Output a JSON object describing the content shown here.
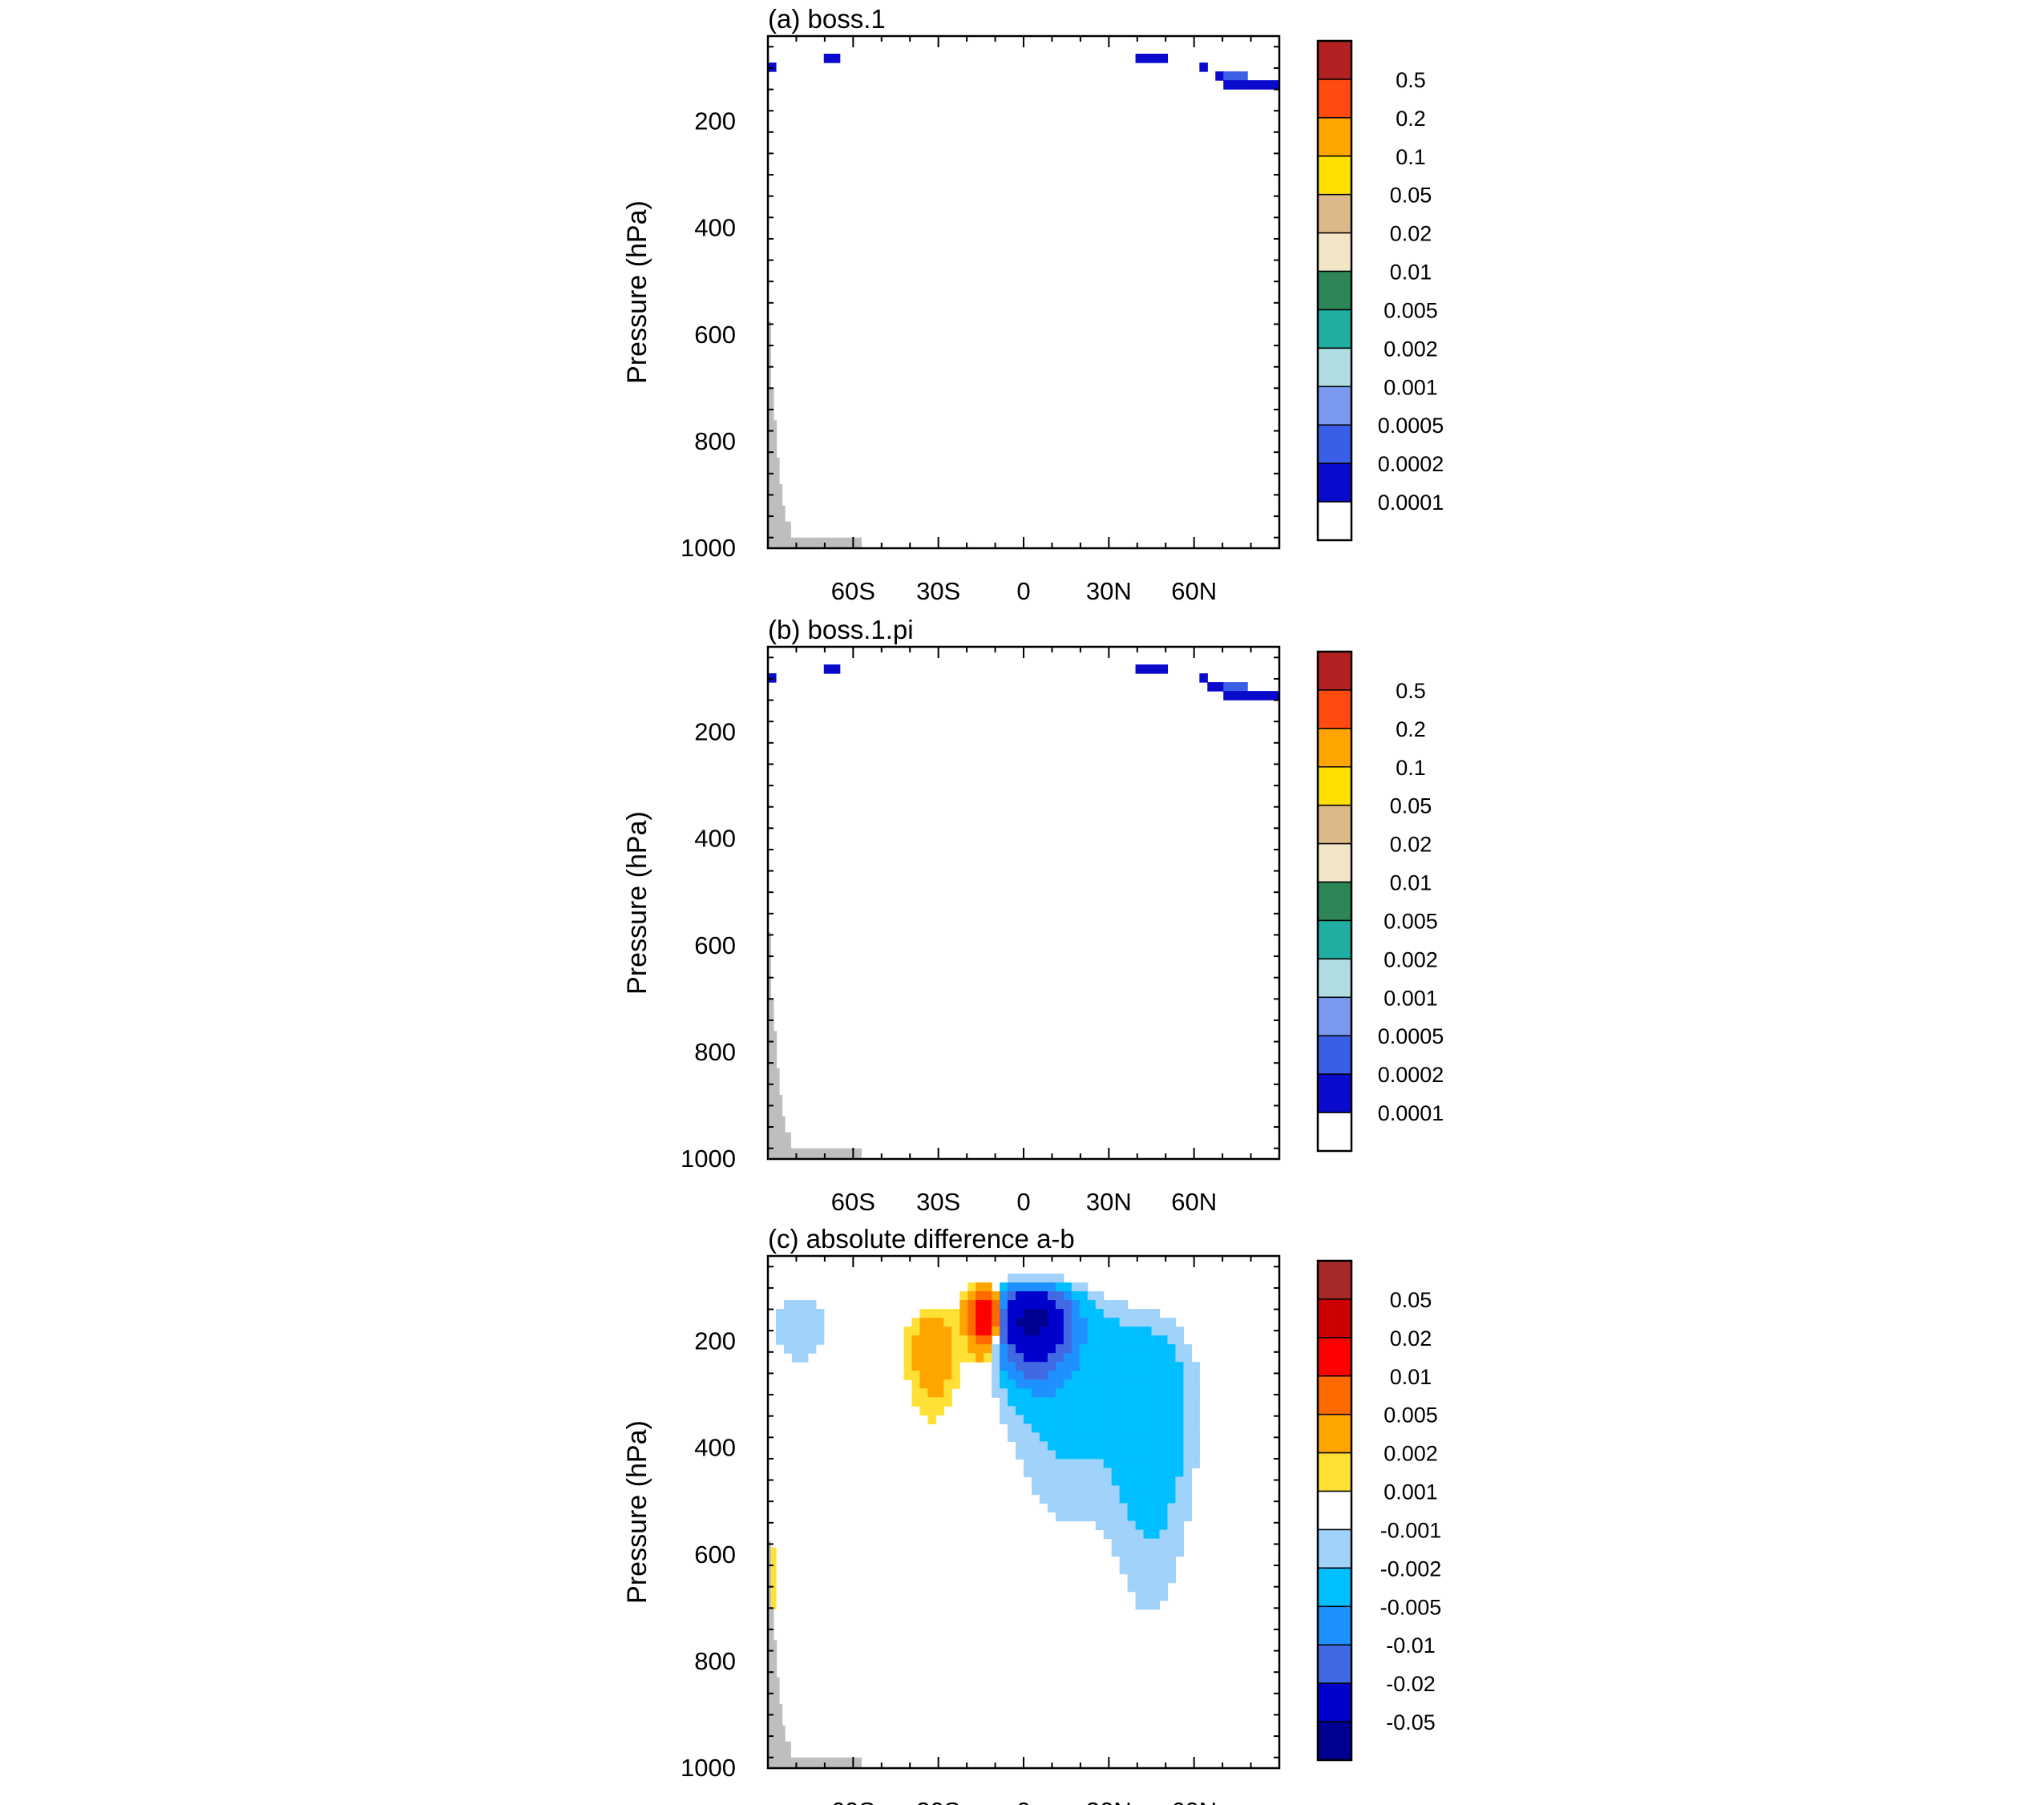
{
  "figure": {
    "axis_common": {
      "ylabel": "Pressure (hPa)",
      "y_ticks": [
        200,
        400,
        600,
        800,
        1000
      ],
      "y_tick_labels": [
        "200",
        "400",
        "600",
        "800",
        "1000"
      ],
      "x_ticks": [
        -60,
        -30,
        0,
        30,
        60
      ],
      "x_tick_labels": [
        "60S",
        "30S",
        "0",
        "30N",
        "60N"
      ]
    },
    "colors": {
      "panel_ab": [
        "#ffffff",
        "#0a0acc",
        "#3a5fe6",
        "#7a9af0",
        "#b0dde3",
        "#20ada2",
        "#2e8657",
        "#f3e6c6",
        "#dbb98a",
        "#ffe000",
        "#ffa500",
        "#ff4b10",
        "#b22222"
      ],
      "panel_c": [
        "#000090",
        "#0000cd",
        "#4169e1",
        "#1e90ff",
        "#00bfff",
        "#a0d2fa",
        "#ffffff",
        "#ffe135",
        "#ffa500",
        "#ff6a00",
        "#ff0000",
        "#cc0000",
        "#a52a2a"
      ],
      "land": "#bebebe"
    }
  },
  "chart_data": [
    {
      "type": "contour",
      "title": "(a) boss.1",
      "xlabel": "",
      "ylabel": "Pressure (hPa)",
      "xlim": [
        -90,
        90
      ],
      "ylim": [
        1000,
        40
      ],
      "levels": [
        "0.5",
        "0.2",
        "0.1",
        "0.05",
        "0.02",
        "0.01",
        "0.005",
        "0.002",
        "0.001",
        "0.0005",
        "0.0002",
        "0.0001"
      ],
      "level_values": [
        0.0001,
        0.0002,
        0.0005,
        0.001,
        0.002,
        0.005,
        0.01,
        0.02,
        0.05,
        0.1,
        0.2,
        0.5
      ]
    },
    {
      "type": "contour",
      "title": "(b) boss.1.pi",
      "xlabel": "",
      "ylabel": "Pressure (hPa)",
      "xlim": [
        -90,
        90
      ],
      "ylim": [
        1000,
        40
      ],
      "levels": [
        "0.5",
        "0.2",
        "0.1",
        "0.05",
        "0.02",
        "0.01",
        "0.005",
        "0.002",
        "0.001",
        "0.0005",
        "0.0002",
        "0.0001"
      ],
      "level_values": [
        0.0001,
        0.0002,
        0.0005,
        0.001,
        0.002,
        0.005,
        0.01,
        0.02,
        0.05,
        0.1,
        0.2,
        0.5
      ]
    },
    {
      "type": "contour",
      "title": "(c) absolute difference a-b",
      "xlabel": "",
      "ylabel": "Pressure (hPa)",
      "xlim": [
        -90,
        90
      ],
      "ylim": [
        1000,
        40
      ],
      "levels": [
        "0.05",
        "0.02",
        "0.01",
        "0.005",
        "0.002",
        "0.001",
        "-0.001",
        "-0.002",
        "-0.005",
        "-0.01",
        "-0.02",
        "-0.05"
      ],
      "level_values": [
        -0.05,
        -0.02,
        -0.01,
        -0.005,
        -0.002,
        -0.001,
        0.001,
        0.002,
        0.005,
        0.01,
        0.02,
        0.05
      ]
    }
  ]
}
